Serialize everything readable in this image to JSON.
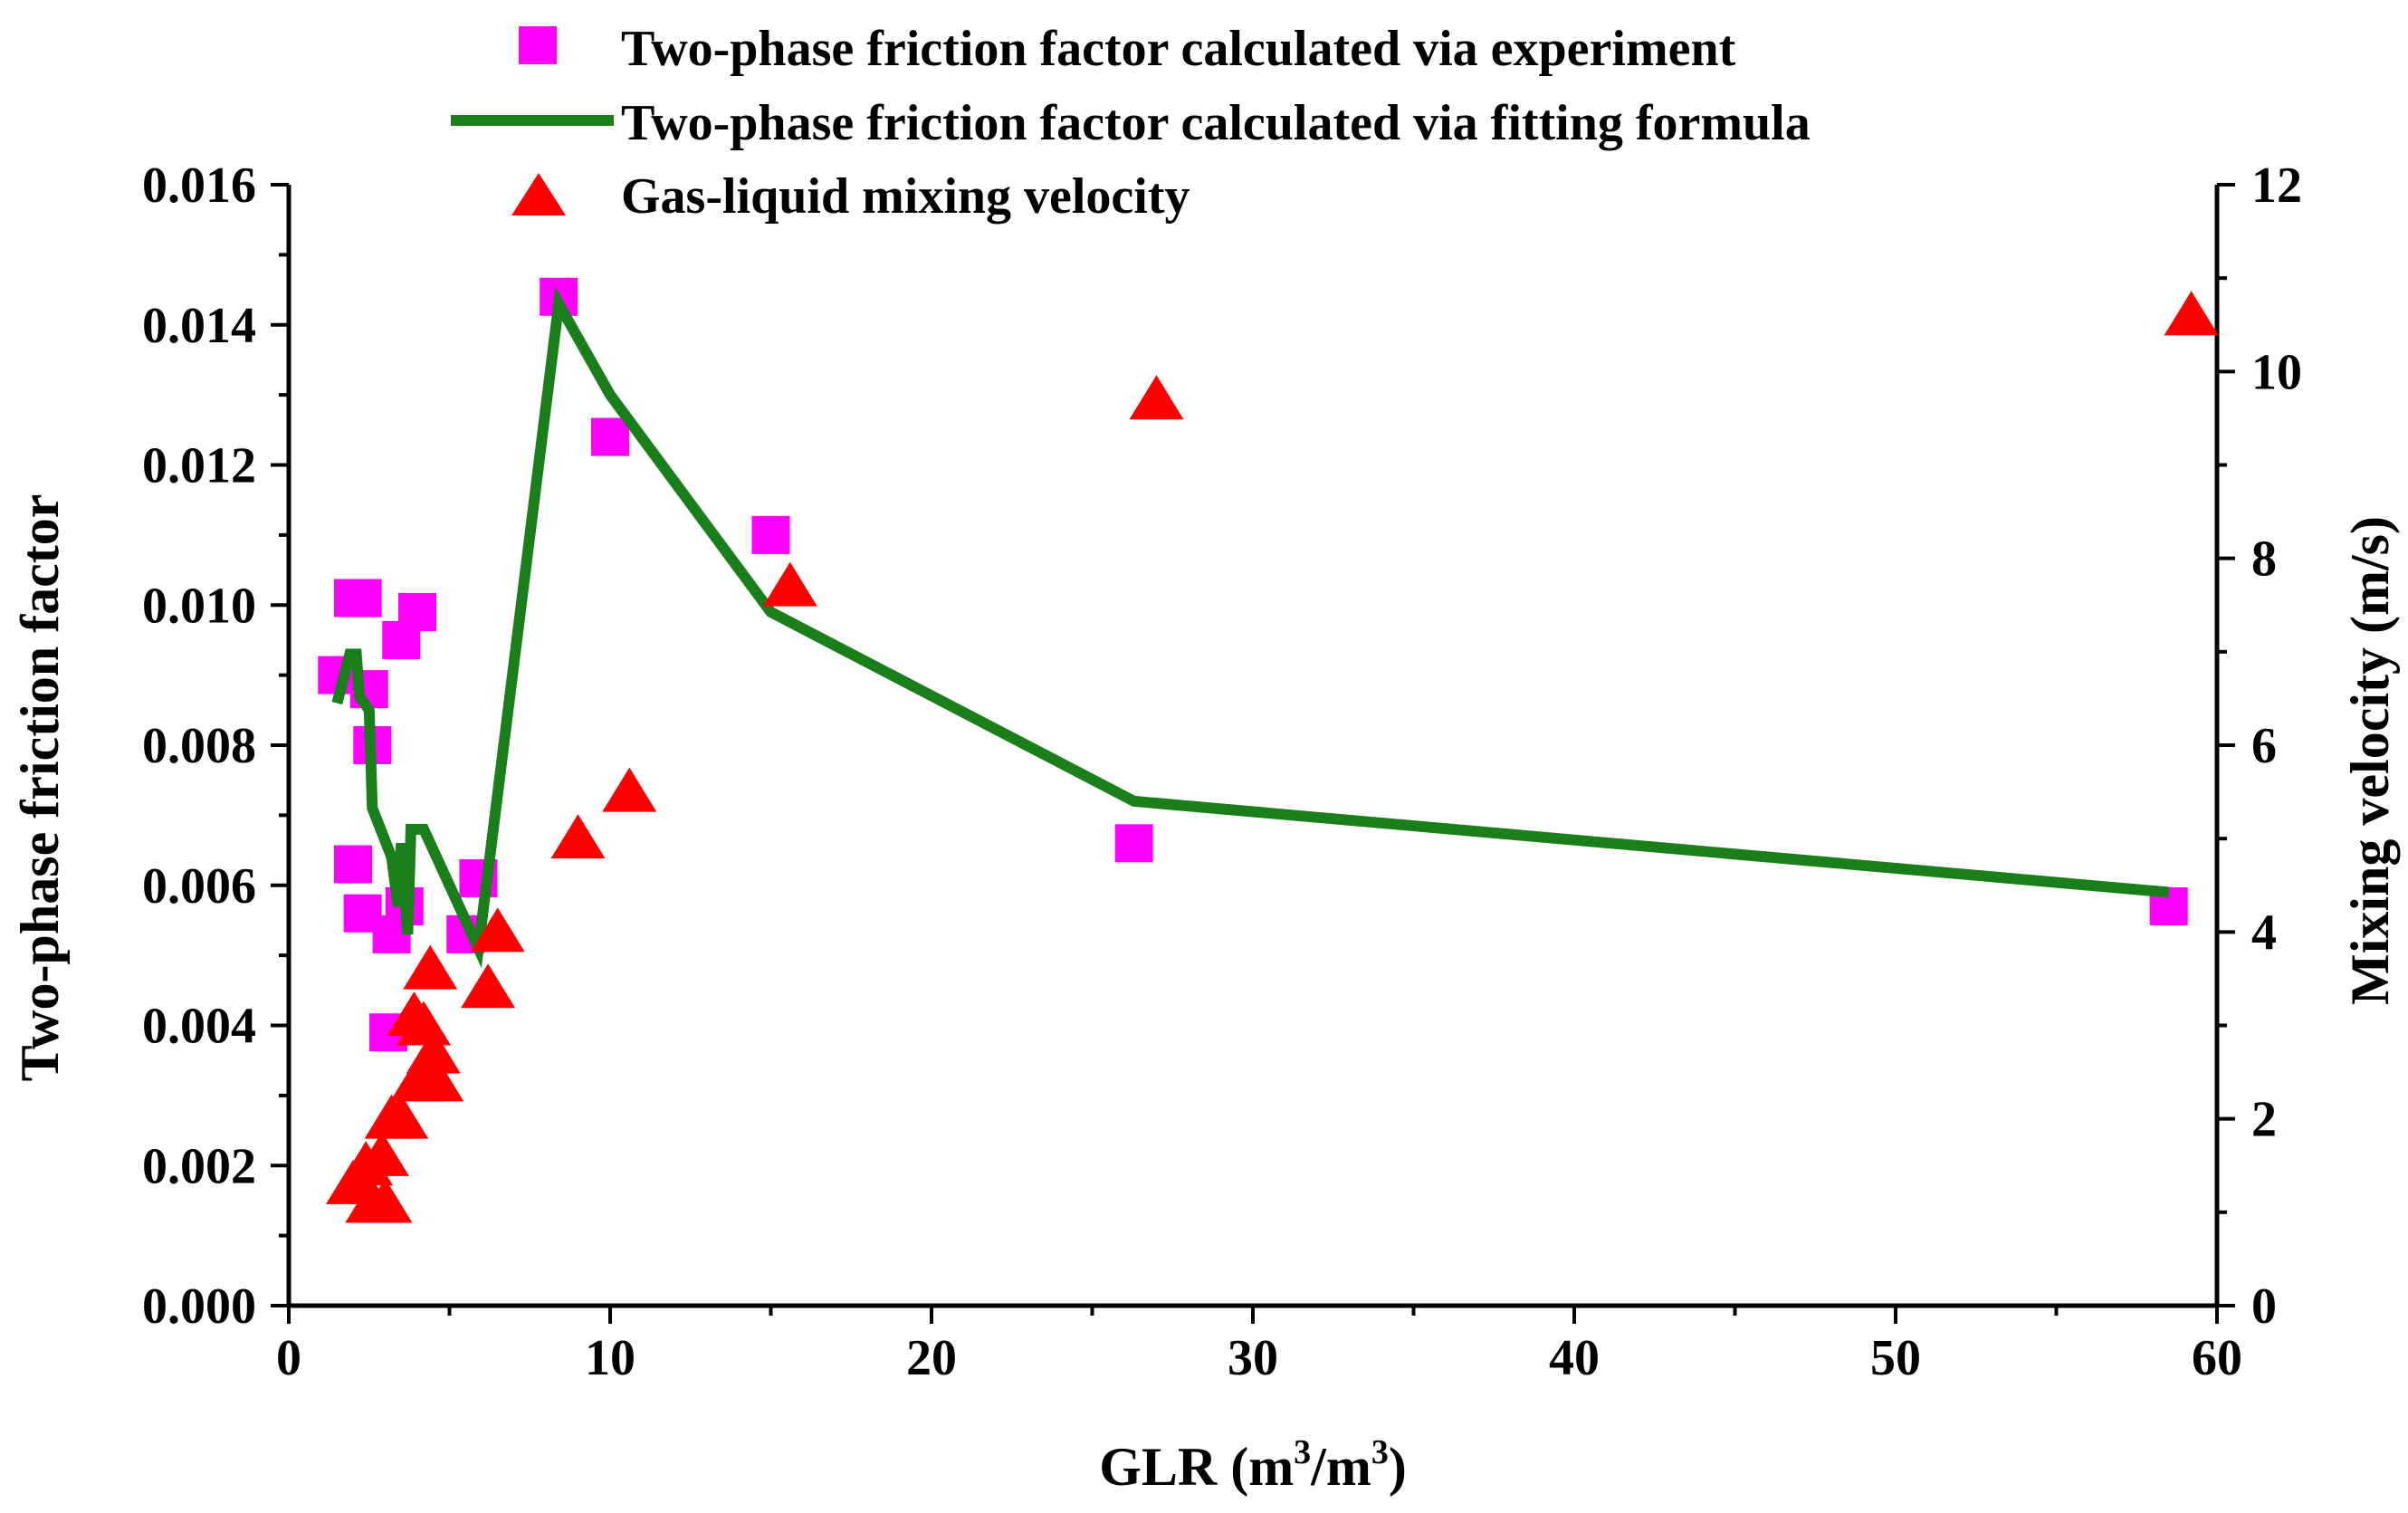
{
  "chart_data": {
    "type": "scatter",
    "title": "",
    "xlabel": "GLR (m",
    "xlabel_sup1": "3",
    "xlabel_mid": "/m",
    "xlabel_sup2": "3",
    "xlabel_end": ")",
    "ylabel_left": "Two-phase friction factor",
    "ylabel_right": "Mixing velocity (m/s)",
    "xlim": [
      0,
      60
    ],
    "ylim_left": [
      0,
      0.016
    ],
    "ylim_right": [
      0,
      12
    ],
    "x_ticks": [
      "0",
      "10",
      "20",
      "30",
      "40",
      "50",
      "60"
    ],
    "y_left_ticks": [
      "0.000",
      "0.002",
      "0.004",
      "0.006",
      "0.008",
      "0.010",
      "0.012",
      "0.014",
      "0.016"
    ],
    "y_right_ticks": [
      "0",
      "2",
      "4",
      "6",
      "8",
      "10",
      "12"
    ],
    "legend_position": "top-center",
    "series": [
      {
        "name": "Two-phase friction factor calculated via experiment",
        "type": "scatter",
        "marker": "square",
        "axis": "left",
        "color": "#ff00ff",
        "points": [
          [
            1.5,
            0.009
          ],
          [
            2.0,
            0.0101
          ],
          [
            2.3,
            0.0101
          ],
          [
            2.5,
            0.0088
          ],
          [
            2.6,
            0.008
          ],
          [
            2.0,
            0.0063
          ],
          [
            2.3,
            0.0056
          ],
          [
            3.2,
            0.0053
          ],
          [
            3.6,
            0.0057
          ],
          [
            3.5,
            0.0095
          ],
          [
            4.0,
            0.0099
          ],
          [
            3.1,
            0.0039
          ],
          [
            5.5,
            0.0053
          ],
          [
            5.9,
            0.0061
          ],
          [
            8.4,
            0.0144
          ],
          [
            10.0,
            0.0124
          ],
          [
            15.0,
            0.011
          ],
          [
            26.3,
            0.0066
          ],
          [
            58.5,
            0.0057
          ]
        ]
      },
      {
        "name": "Two-phase friction factor calculated via fitting formula",
        "type": "line",
        "axis": "left",
        "color": "#1a7f1a",
        "points": [
          [
            1.5,
            0.0086
          ],
          [
            1.9,
            0.0093
          ],
          [
            2.1,
            0.0093
          ],
          [
            2.2,
            0.0087
          ],
          [
            2.5,
            0.0085
          ],
          [
            2.6,
            0.0071
          ],
          [
            3.2,
            0.0064
          ],
          [
            3.4,
            0.0057
          ],
          [
            3.5,
            0.0066
          ],
          [
            3.7,
            0.0053
          ],
          [
            3.8,
            0.0068
          ],
          [
            4.2,
            0.0068
          ],
          [
            5.9,
            0.0051
          ],
          [
            8.4,
            0.0143
          ],
          [
            10.0,
            0.013
          ],
          [
            15.0,
            0.0099
          ],
          [
            26.3,
            0.0072
          ],
          [
            58.5,
            0.0059
          ]
        ]
      },
      {
        "name": "Gas-liquid mixing velocity",
        "type": "scatter",
        "marker": "triangle",
        "axis": "right",
        "color": "#ff0000",
        "points": [
          [
            2.0,
            1.3
          ],
          [
            2.4,
            1.5
          ],
          [
            2.6,
            1.1
          ],
          [
            3.0,
            1.1
          ],
          [
            2.9,
            1.6
          ],
          [
            3.2,
            2.0
          ],
          [
            3.5,
            2.0
          ],
          [
            4.0,
            2.4
          ],
          [
            4.2,
            3.0
          ],
          [
            4.5,
            2.7
          ],
          [
            3.9,
            3.1
          ],
          [
            4.4,
            3.6
          ],
          [
            4.6,
            2.4
          ],
          [
            6.2,
            3.4
          ],
          [
            6.5,
            4.0
          ],
          [
            9.0,
            5.0
          ],
          [
            10.6,
            5.5
          ],
          [
            15.6,
            7.7
          ],
          [
            27.0,
            9.7
          ],
          [
            59.2,
            10.6
          ]
        ]
      }
    ]
  }
}
